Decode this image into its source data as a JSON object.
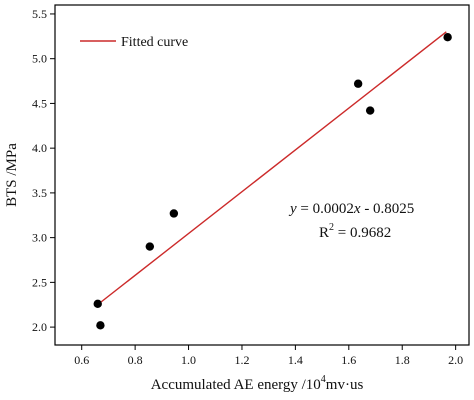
{
  "chart_data": {
    "type": "scatter",
    "xlabel_main": "Accumulated AE energy /10",
    "xlabel_sup": "4",
    "xlabel_tail": "mv·us",
    "ylabel": "BTS /MPa",
    "xlim": [
      0.5,
      2.05
    ],
    "ylim": [
      1.8,
      5.6
    ],
    "x_ticks": [
      0.6,
      0.8,
      1.0,
      1.2,
      1.4,
      1.6,
      1.8,
      2.0
    ],
    "x_tick_labels": [
      "0.6",
      "0.8",
      "1.0",
      "1.2",
      "1.4",
      "1.6",
      "1.8",
      "2.0"
    ],
    "y_ticks": [
      2.0,
      2.5,
      3.0,
      3.5,
      4.0,
      4.5,
      5.0,
      5.5
    ],
    "y_tick_labels": [
      "2.0",
      "2.5",
      "3.0",
      "3.5",
      "4.0",
      "4.5",
      "5.0",
      "5.5"
    ],
    "grid": false,
    "legend_position": "top-left",
    "series": [
      {
        "name": "",
        "marker_color": "#000000",
        "points": [
          {
            "x": 0.66,
            "y": 2.26
          },
          {
            "x": 0.67,
            "y": 2.02
          },
          {
            "x": 0.855,
            "y": 2.9
          },
          {
            "x": 0.945,
            "y": 3.27
          },
          {
            "x": 1.635,
            "y": 4.72
          },
          {
            "x": 1.68,
            "y": 4.42
          },
          {
            "x": 1.97,
            "y": 5.24
          }
        ]
      }
    ],
    "fit": {
      "name": "Fitted curve",
      "color": "#cc2a2a",
      "x_start": 0.655,
      "y_start": 2.24,
      "x_end": 1.965,
      "y_end": 5.3,
      "equation_prefix": "y",
      "equation_mid": " = 0.0002",
      "equation_var": "x",
      "equation_tail": " - 0.8025",
      "r2_label": "R",
      "r2_sup": "2",
      "r2_value": " = 0.9682"
    }
  }
}
